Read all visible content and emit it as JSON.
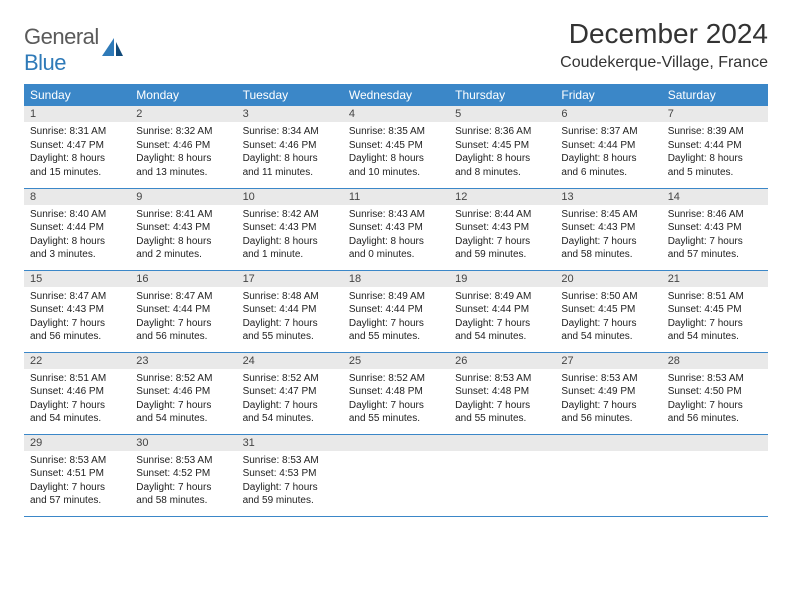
{
  "logo": {
    "part1": "General",
    "part2": "Blue"
  },
  "title": "December 2024",
  "location": "Coudekerque-Village, France",
  "colors": {
    "header_bg": "#3b87c8",
    "header_text": "#ffffff",
    "daynum_bg": "#e9e9e9",
    "border": "#3b87c8",
    "logo_gray": "#5a5a5a",
    "logo_blue": "#2f7ab8"
  },
  "weekdays": [
    "Sunday",
    "Monday",
    "Tuesday",
    "Wednesday",
    "Thursday",
    "Friday",
    "Saturday"
  ],
  "weeks": [
    [
      {
        "n": "1",
        "sr": "Sunrise: 8:31 AM",
        "ss": "Sunset: 4:47 PM",
        "dl": "Daylight: 8 hours and 15 minutes."
      },
      {
        "n": "2",
        "sr": "Sunrise: 8:32 AM",
        "ss": "Sunset: 4:46 PM",
        "dl": "Daylight: 8 hours and 13 minutes."
      },
      {
        "n": "3",
        "sr": "Sunrise: 8:34 AM",
        "ss": "Sunset: 4:46 PM",
        "dl": "Daylight: 8 hours and 11 minutes."
      },
      {
        "n": "4",
        "sr": "Sunrise: 8:35 AM",
        "ss": "Sunset: 4:45 PM",
        "dl": "Daylight: 8 hours and 10 minutes."
      },
      {
        "n": "5",
        "sr": "Sunrise: 8:36 AM",
        "ss": "Sunset: 4:45 PM",
        "dl": "Daylight: 8 hours and 8 minutes."
      },
      {
        "n": "6",
        "sr": "Sunrise: 8:37 AM",
        "ss": "Sunset: 4:44 PM",
        "dl": "Daylight: 8 hours and 6 minutes."
      },
      {
        "n": "7",
        "sr": "Sunrise: 8:39 AM",
        "ss": "Sunset: 4:44 PM",
        "dl": "Daylight: 8 hours and 5 minutes."
      }
    ],
    [
      {
        "n": "8",
        "sr": "Sunrise: 8:40 AM",
        "ss": "Sunset: 4:44 PM",
        "dl": "Daylight: 8 hours and 3 minutes."
      },
      {
        "n": "9",
        "sr": "Sunrise: 8:41 AM",
        "ss": "Sunset: 4:43 PM",
        "dl": "Daylight: 8 hours and 2 minutes."
      },
      {
        "n": "10",
        "sr": "Sunrise: 8:42 AM",
        "ss": "Sunset: 4:43 PM",
        "dl": "Daylight: 8 hours and 1 minute."
      },
      {
        "n": "11",
        "sr": "Sunrise: 8:43 AM",
        "ss": "Sunset: 4:43 PM",
        "dl": "Daylight: 8 hours and 0 minutes."
      },
      {
        "n": "12",
        "sr": "Sunrise: 8:44 AM",
        "ss": "Sunset: 4:43 PM",
        "dl": "Daylight: 7 hours and 59 minutes."
      },
      {
        "n": "13",
        "sr": "Sunrise: 8:45 AM",
        "ss": "Sunset: 4:43 PM",
        "dl": "Daylight: 7 hours and 58 minutes."
      },
      {
        "n": "14",
        "sr": "Sunrise: 8:46 AM",
        "ss": "Sunset: 4:43 PM",
        "dl": "Daylight: 7 hours and 57 minutes."
      }
    ],
    [
      {
        "n": "15",
        "sr": "Sunrise: 8:47 AM",
        "ss": "Sunset: 4:43 PM",
        "dl": "Daylight: 7 hours and 56 minutes."
      },
      {
        "n": "16",
        "sr": "Sunrise: 8:47 AM",
        "ss": "Sunset: 4:44 PM",
        "dl": "Daylight: 7 hours and 56 minutes."
      },
      {
        "n": "17",
        "sr": "Sunrise: 8:48 AM",
        "ss": "Sunset: 4:44 PM",
        "dl": "Daylight: 7 hours and 55 minutes."
      },
      {
        "n": "18",
        "sr": "Sunrise: 8:49 AM",
        "ss": "Sunset: 4:44 PM",
        "dl": "Daylight: 7 hours and 55 minutes."
      },
      {
        "n": "19",
        "sr": "Sunrise: 8:49 AM",
        "ss": "Sunset: 4:44 PM",
        "dl": "Daylight: 7 hours and 54 minutes."
      },
      {
        "n": "20",
        "sr": "Sunrise: 8:50 AM",
        "ss": "Sunset: 4:45 PM",
        "dl": "Daylight: 7 hours and 54 minutes."
      },
      {
        "n": "21",
        "sr": "Sunrise: 8:51 AM",
        "ss": "Sunset: 4:45 PM",
        "dl": "Daylight: 7 hours and 54 minutes."
      }
    ],
    [
      {
        "n": "22",
        "sr": "Sunrise: 8:51 AM",
        "ss": "Sunset: 4:46 PM",
        "dl": "Daylight: 7 hours and 54 minutes."
      },
      {
        "n": "23",
        "sr": "Sunrise: 8:52 AM",
        "ss": "Sunset: 4:46 PM",
        "dl": "Daylight: 7 hours and 54 minutes."
      },
      {
        "n": "24",
        "sr": "Sunrise: 8:52 AM",
        "ss": "Sunset: 4:47 PM",
        "dl": "Daylight: 7 hours and 54 minutes."
      },
      {
        "n": "25",
        "sr": "Sunrise: 8:52 AM",
        "ss": "Sunset: 4:48 PM",
        "dl": "Daylight: 7 hours and 55 minutes."
      },
      {
        "n": "26",
        "sr": "Sunrise: 8:53 AM",
        "ss": "Sunset: 4:48 PM",
        "dl": "Daylight: 7 hours and 55 minutes."
      },
      {
        "n": "27",
        "sr": "Sunrise: 8:53 AM",
        "ss": "Sunset: 4:49 PM",
        "dl": "Daylight: 7 hours and 56 minutes."
      },
      {
        "n": "28",
        "sr": "Sunrise: 8:53 AM",
        "ss": "Sunset: 4:50 PM",
        "dl": "Daylight: 7 hours and 56 minutes."
      }
    ],
    [
      {
        "n": "29",
        "sr": "Sunrise: 8:53 AM",
        "ss": "Sunset: 4:51 PM",
        "dl": "Daylight: 7 hours and 57 minutes."
      },
      {
        "n": "30",
        "sr": "Sunrise: 8:53 AM",
        "ss": "Sunset: 4:52 PM",
        "dl": "Daylight: 7 hours and 58 minutes."
      },
      {
        "n": "31",
        "sr": "Sunrise: 8:53 AM",
        "ss": "Sunset: 4:53 PM",
        "dl": "Daylight: 7 hours and 59 minutes."
      },
      {
        "empty": true
      },
      {
        "empty": true
      },
      {
        "empty": true
      },
      {
        "empty": true
      }
    ]
  ]
}
